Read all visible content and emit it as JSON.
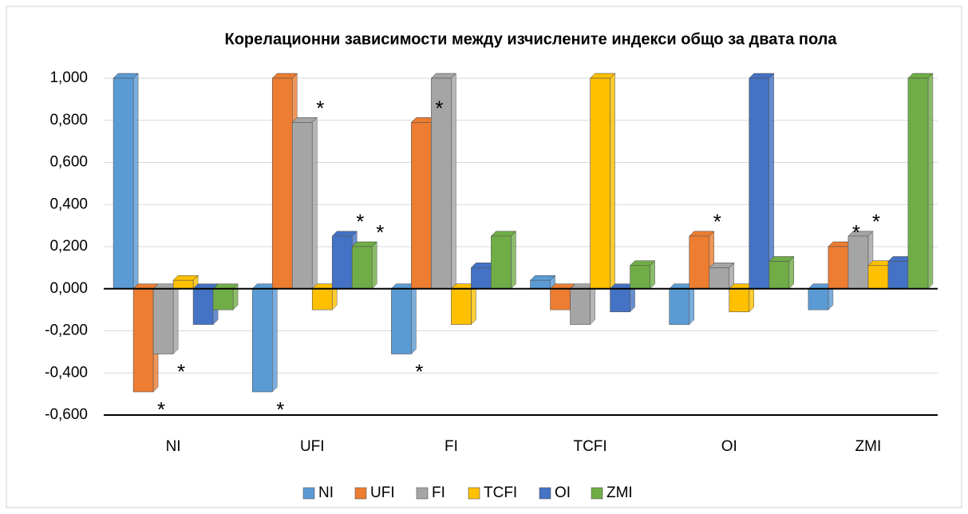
{
  "chart_data": {
    "type": "bar",
    "title": "Корелационни зависимости между изчислените индекси общо за двата пола",
    "categories": [
      "NI",
      "UFI",
      "FI",
      "TCFI",
      "OI",
      "ZMI"
    ],
    "series": [
      {
        "name": "NI",
        "color": "#5b9bd5",
        "values": [
          1.0,
          -0.49,
          -0.31,
          0.04,
          -0.17,
          -0.1
        ]
      },
      {
        "name": "UFI",
        "color": "#ed7d31",
        "values": [
          -0.49,
          1.0,
          0.79,
          -0.1,
          0.25,
          0.2
        ]
      },
      {
        "name": "FI",
        "color": "#a5a5a5",
        "values": [
          -0.31,
          0.79,
          1.0,
          -0.17,
          0.1,
          0.25
        ]
      },
      {
        "name": "TCFI",
        "color": "#ffc000",
        "values": [
          0.04,
          -0.1,
          -0.17,
          1.0,
          -0.11,
          0.11
        ]
      },
      {
        "name": "OI",
        "color": "#4472c4",
        "values": [
          -0.17,
          0.25,
          0.1,
          -0.11,
          1.0,
          0.13
        ]
      },
      {
        "name": "ZMI",
        "color": "#70ad47",
        "values": [
          -0.1,
          0.2,
          0.25,
          0.11,
          0.13,
          1.0
        ]
      }
    ],
    "ylim": [
      -0.6,
      1.0
    ],
    "yticks": [
      {
        "value": 1.0,
        "label": "1,000"
      },
      {
        "value": 0.8,
        "label": "0,800"
      },
      {
        "value": 0.6,
        "label": "0,600"
      },
      {
        "value": 0.4,
        "label": "0,400"
      },
      {
        "value": 0.2,
        "label": "0,200"
      },
      {
        "value": 0,
        "label": "0,000"
      },
      {
        "value": -0.2,
        "label": "-0,200"
      },
      {
        "value": -0.4,
        "label": "-0,400"
      },
      {
        "value": -0.6,
        "label": "-0,600"
      }
    ],
    "grid": true,
    "legend": "bottom",
    "annotations": [
      {
        "text": "*",
        "category": "NI",
        "series": "UFI"
      },
      {
        "text": "*",
        "category": "NI",
        "series": "FI"
      },
      {
        "text": "*",
        "category": "UFI",
        "series": "NI"
      },
      {
        "text": "*",
        "category": "UFI",
        "series": "FI"
      },
      {
        "text": "*",
        "category": "UFI",
        "series": "OI"
      },
      {
        "text": "*",
        "category": "UFI",
        "series": "ZMI"
      },
      {
        "text": "*",
        "category": "FI",
        "series": "NI"
      },
      {
        "text": "*",
        "category": "FI",
        "series": "UFI"
      },
      {
        "text": "*",
        "category": "OI",
        "series": "UFI"
      },
      {
        "text": "*",
        "category": "ZMI",
        "series": "UFI"
      },
      {
        "text": "*",
        "category": "ZMI",
        "series": "FI"
      }
    ]
  }
}
